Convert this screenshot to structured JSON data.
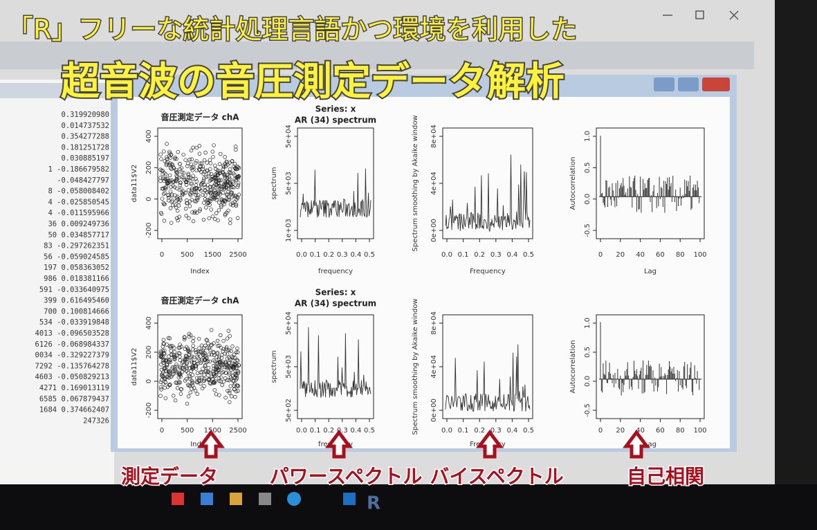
{
  "overlay": {
    "line1": "「R」フリーな統計処理言語かつ環境を利用した",
    "line2": "超音波の音圧測定データ解析"
  },
  "console": {
    "lines": [
      "0.319920980",
      "0.014737532",
      "0.354277288",
      "0.181251728",
      "0.030885197",
      "1 -0.186679582",
      "-0.048427797",
      "8 -0.058008402",
      "4 -0.025850545",
      "4 -0.011595966",
      "36  0.009249736",
      "50  0.034857717",
      "83 -0.297262351",
      "56 -0.059024585",
      "197  0.058363052",
      "986  0.018381166",
      "591 -0.033640975",
      "399  0.616495460",
      "700  0.100814666",
      "534 -0.033919848",
      "4013 -0.096503528",
      "6126 -0.068984337",
      "0034 -0.329227379",
      "7292 -0.135764278",
      "4603 -0.050829213",
      "4271  0.169013119",
      "6585  0.067879437",
      "1684  0.374662407",
      "247326"
    ]
  },
  "plots": [
    {
      "title": "音圧測定データ chA",
      "ylabel": "data11$V2",
      "xlabel": "Index",
      "xticks": [
        "0",
        "500",
        "1500",
        "2500"
      ],
      "yticks": [
        "-200",
        "0",
        "200",
        "400"
      ]
    },
    {
      "title": "Series: x",
      "subtitle": "AR (34) spectrum",
      "ylabel": "spectrum",
      "xlabel": "frequency",
      "xticks": [
        "0.0",
        "0.1",
        "0.2",
        "0.3",
        "0.4",
        "0.5"
      ],
      "yticks": [
        "1e+03",
        "5e+03",
        "5e+04"
      ]
    },
    {
      "ylabel": "Spectrum smoothing by Akaike window",
      "xlabel": "Frequency",
      "xticks": [
        "0.0",
        "0.1",
        "0.2",
        "0.3",
        "0.4",
        "0.5"
      ],
      "yticks": [
        "0e+00",
        "4e+04",
        "8e+04"
      ]
    },
    {
      "ylabel": "Autocorrelation",
      "xlabel": "Lag",
      "xticks": [
        "0",
        "20",
        "40",
        "60",
        "80",
        "100"
      ],
      "yticks": [
        "-0.5",
        "0.0",
        "0.5",
        "1.0"
      ]
    },
    {
      "title": "音圧測定データ chA",
      "ylabel": "data11$V2",
      "xlabel": "Index",
      "xticks": [
        "0",
        "500",
        "1500",
        "2500"
      ],
      "yticks": [
        "-200",
        "0",
        "200",
        "400"
      ]
    },
    {
      "title": "Series: x",
      "subtitle": "AR (34) spectrum",
      "ylabel": "spectrum",
      "xlabel": "frequency",
      "xticks": [
        "0.0",
        "0.1",
        "0.2",
        "0.3",
        "0.4",
        "0.5"
      ],
      "yticks": [
        "5e+02",
        "5e+03",
        "5e+04"
      ]
    },
    {
      "ylabel": "Spectrum smoothing by Akaike window",
      "xlabel": "Frequency",
      "xticks": [
        "0.0",
        "0.1",
        "0.2",
        "0.3",
        "0.4",
        "0.5"
      ],
      "yticks": [
        "0e+00",
        "4e+04",
        "8e+04"
      ]
    },
    {
      "ylabel": "Autocorrelation",
      "xlabel": "Lag",
      "xticks": [
        "0",
        "20",
        "40",
        "60",
        "80",
        "100"
      ],
      "yticks": [
        "-0.5",
        "0.0",
        "0.5",
        "1.0"
      ]
    }
  ],
  "captions": [
    "測定データ",
    "パワースペクトル",
    "バイスペクトル",
    "自己相関"
  ],
  "taskbar": {
    "app": "R"
  }
}
